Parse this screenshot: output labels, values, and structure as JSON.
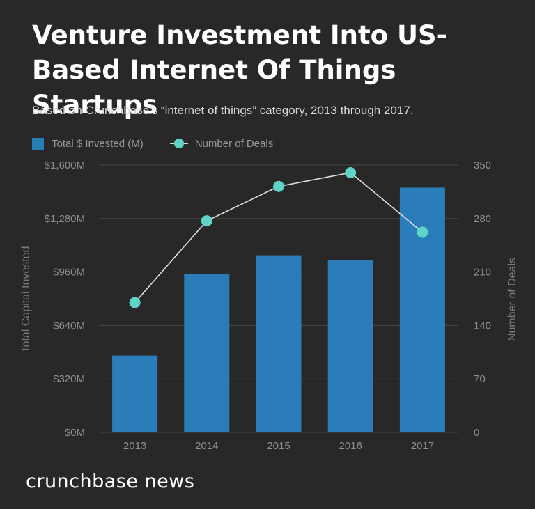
{
  "header": {
    "title": "Venture Investment Into US-Based Internet Of Things Startups",
    "subtitle": "Based on Crunchbase’s “internet of things” category, 2013 through 2017."
  },
  "legend": {
    "bar_label": "Total $ Invested (M)",
    "line_label": "Number of Deals"
  },
  "footer": {
    "brand": "crunchbase news"
  },
  "colors": {
    "bar": "#2a7db8",
    "line": "#e0e0e0",
    "dot": "#5ed3c8",
    "grid": "#464646",
    "axis_text": "#8f8f8f"
  },
  "chart_data": {
    "type": "bar",
    "categories": [
      "2013",
      "2014",
      "2015",
      "2016",
      "2017"
    ],
    "series": [
      {
        "name": "Total $ Invested (M)",
        "type": "bar",
        "axis": "left",
        "values": [
          460,
          950,
          1060,
          1030,
          1465
        ]
      },
      {
        "name": "Number of Deals",
        "type": "line",
        "axis": "right",
        "values": [
          170,
          277,
          322,
          340,
          262
        ]
      }
    ],
    "ylabel_left": "Total Capital Invested",
    "ylabel_right": "Number of Deals",
    "ylim_left": [
      0,
      1600
    ],
    "ylim_right": [
      0,
      350
    ],
    "yticks_left": [
      "$0M",
      "$320M",
      "$640M",
      "$960M",
      "$1,280M",
      "$1,600M"
    ],
    "yticks_right": [
      "0",
      "70",
      "140",
      "210",
      "280",
      "350"
    ],
    "grid": true,
    "legend_position": "top-left"
  }
}
